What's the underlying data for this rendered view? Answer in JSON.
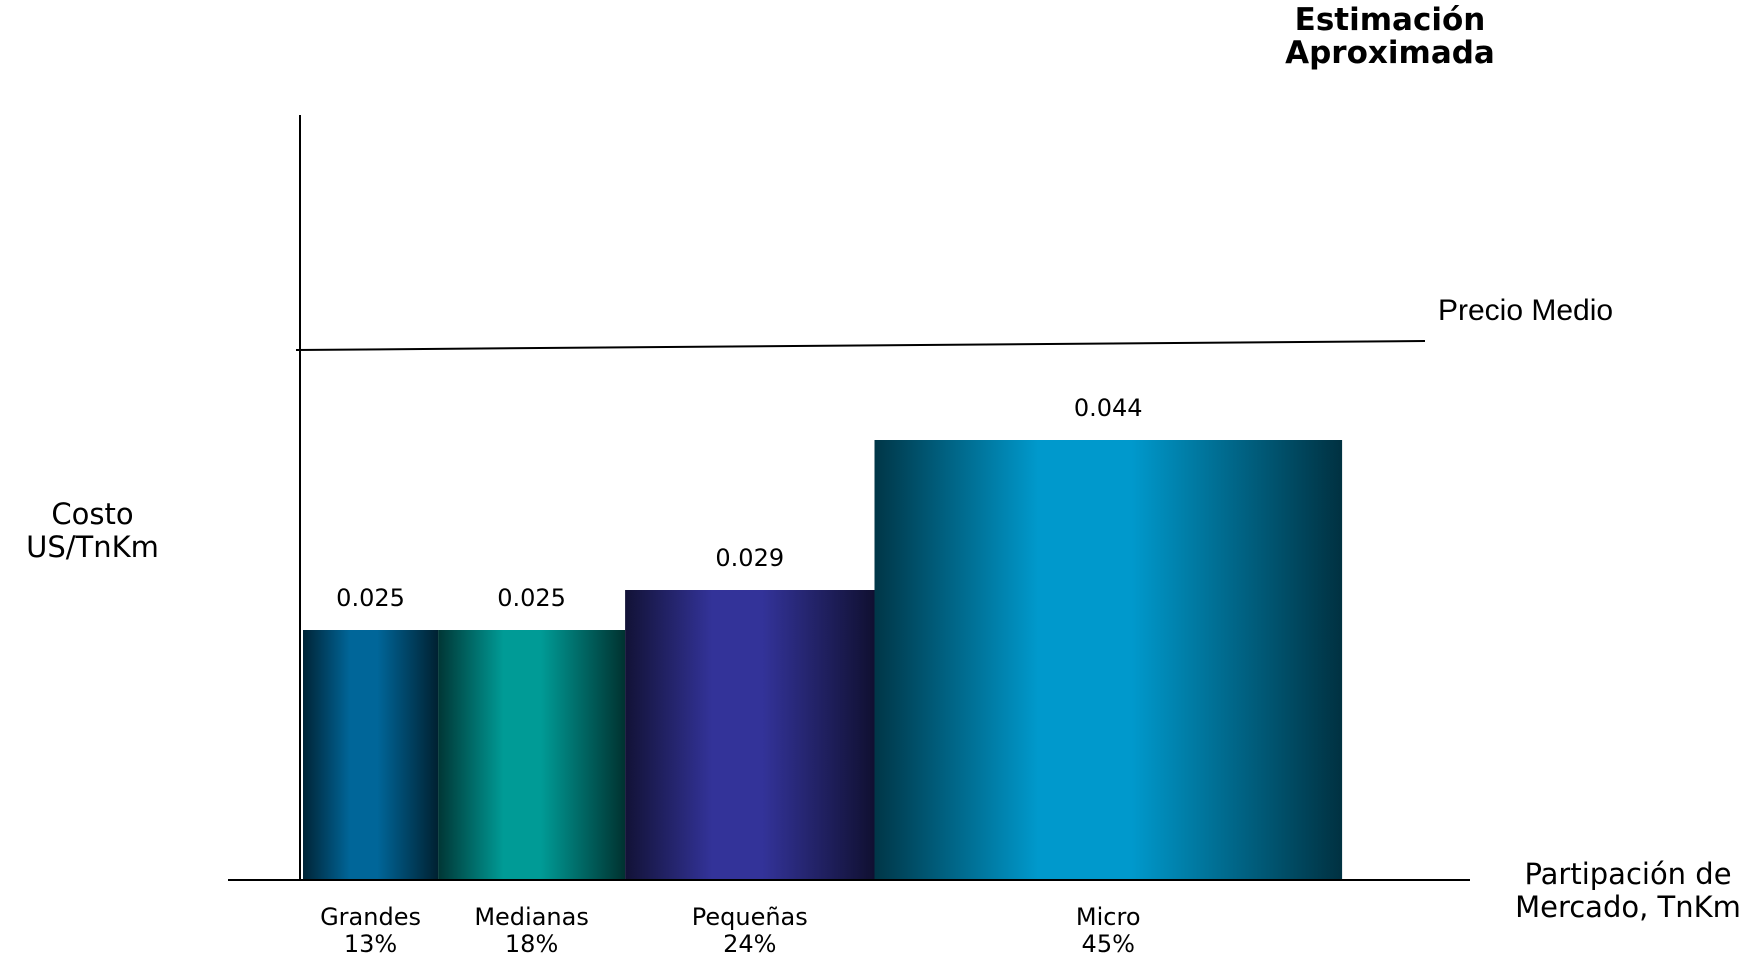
{
  "chart_data": {
    "type": "bar",
    "variant": "variable-width (Marimekko-style) bars, width proportional to market share",
    "title": "Estimación\nAproximada",
    "title_lines": [
      "Estimación",
      "Aproximada"
    ],
    "ylabel_lines": [
      "Costo",
      "US/TnKm"
    ],
    "xlabel_lines": [
      "Partipación de",
      "Mercado, TnKm"
    ],
    "categories": [
      "Grandes",
      "Medianas",
      "Pequeñas",
      "Micro"
    ],
    "shares": [
      "13%",
      "18%",
      "24%",
      "45%"
    ],
    "share_values": [
      13,
      18,
      24,
      45
    ],
    "values": [
      0.025,
      0.025,
      0.029,
      0.044
    ],
    "value_labels": [
      "0.025",
      "0.025",
      "0.029",
      "0.044"
    ],
    "colors": [
      "#006699",
      "#009b96",
      "#333399",
      "#0099cc"
    ],
    "reference_line": {
      "label": "Precio Medio",
      "value": 0.053
    },
    "ylim": [
      0,
      0.073
    ],
    "grid": false,
    "legend": "none"
  }
}
